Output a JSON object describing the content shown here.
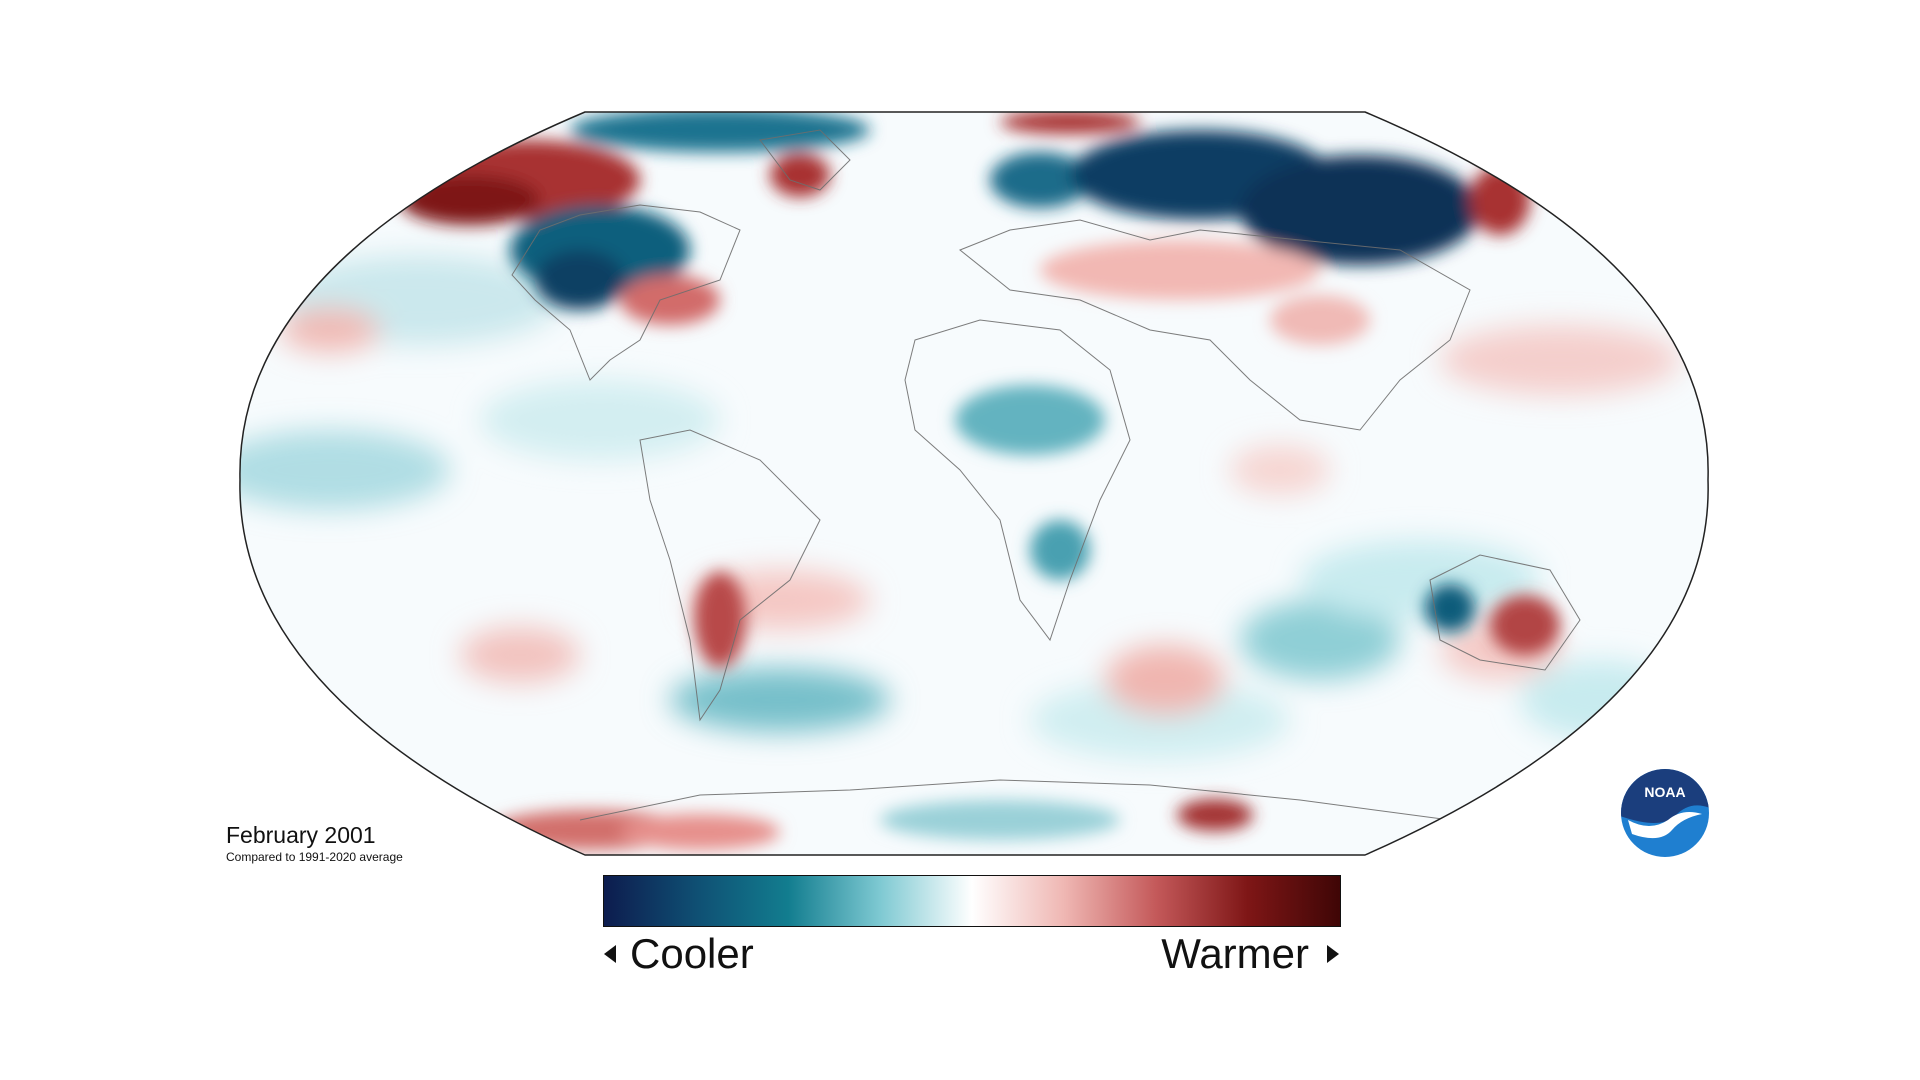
{
  "map": {
    "projection": "Robinson",
    "date_label": "February 2001",
    "comparison_label": "Compared to 1991-2020 average"
  },
  "legend": {
    "cooler_label": "Cooler",
    "warmer_label": "Warmer",
    "colors": [
      "#0d1c4e",
      "#0f4f73",
      "#127d8f",
      "#7ec9d2",
      "#ffffff",
      "#efb7b3",
      "#c4595a",
      "#7e1616",
      "#3f0606"
    ]
  },
  "logo": {
    "text": "NOAA",
    "colors": {
      "top": "#1b3e7d",
      "bottom": "#1f7fd0",
      "bird": "#ffffff"
    }
  }
}
